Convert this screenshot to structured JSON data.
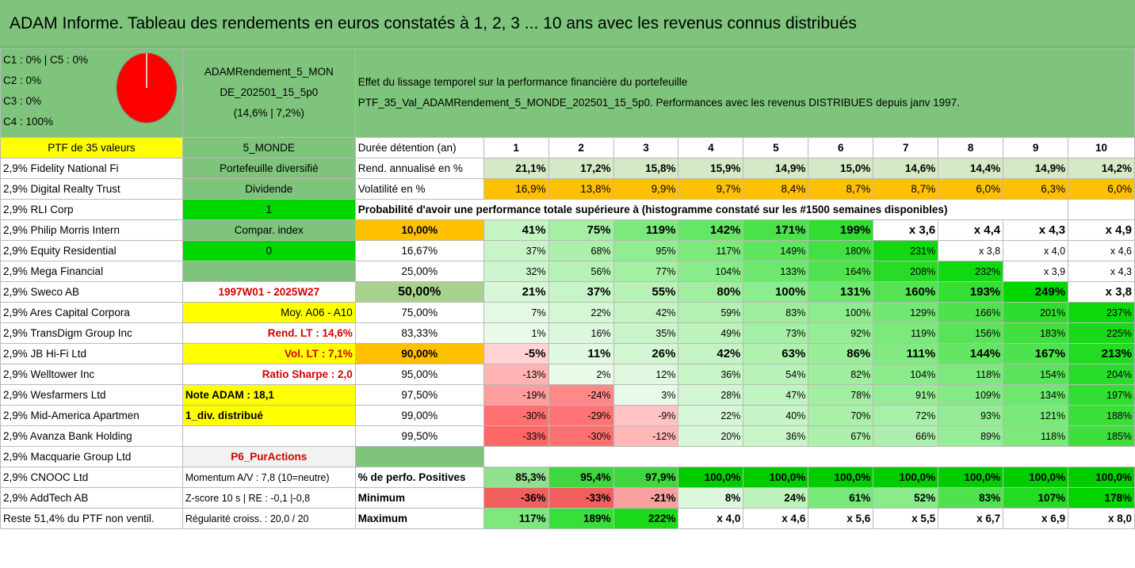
{
  "title": "ADAM Informe. Tableau des rendements en euros constatés à 1, 2, 3 ... 10 ans avec les revenus connus distribués",
  "pie": {
    "lines": [
      "C1 : 0% | C5 : 0%",
      "C2 : 0%",
      "C3 : 0%",
      "C4 : 100%"
    ],
    "color": "#ff0000"
  },
  "portfolio": {
    "name_l1": "ADAMRendement_5_MON",
    "name_l2": "DE_202501_15_5p0",
    "name_l3": "(14,6% | 7,2%)"
  },
  "header_text": {
    "l1": "Effet du lissage temporel sur la performance financière du portefeuille",
    "l2": "PTF_35_Val_ADAMRendement_5_MONDE_202501_15_5p0. Performances avec les revenus DISTRIBUES depuis janv 1997."
  },
  "ptf_label": "PTF de 35 valeurs",
  "mode": "5_MONDE",
  "holdings": [
    "2,9% Fidelity National Fi",
    "2,9% Digital Realty Trust",
    "2,9% RLI Corp",
    "2,9% Philip Morris Intern",
    "2,9% Equity Residential",
    "2,9% Mega Financial",
    "2,9% Sweco AB",
    "2,9% Ares Capital Corpora",
    "2,9% TransDigm Group Inc",
    "2,9% JB Hi-Fi Ltd",
    "2,9% Welltower Inc",
    "2,9% Wesfarmers Ltd",
    "2,9% Mid-America Apartmen",
    "2,9% Avanza Bank Holding",
    "2,9% Macquarie Group Ltd",
    "2,9% CNOOC Ltd",
    "2,9% AddTech AB",
    "Reste 51,4% du PTF non ventil."
  ],
  "col2": [
    "Portefeuille diversifié",
    "Dividende",
    "1",
    "Compar. index",
    "0",
    "",
    "1997W01 - 2025W27",
    "Moy. A06 - A10",
    "Rend. LT : 14,6%",
    "Vol. LT : 7,1%",
    "Ratio Sharpe : 2,0",
    "Note ADAM : 18,1",
    "1_div. distribué",
    "",
    "P6_PurActions",
    "Momentum A/V : 7,8 (10=neutre)",
    "Z-score 10 s | RE : -0,1 |-0,8",
    "Régularité croiss. : 20,0 / 20"
  ],
  "duree_label": "Durée détention (an)",
  "years": [
    "1",
    "2",
    "3",
    "4",
    "5",
    "6",
    "7",
    "8",
    "9",
    "10"
  ],
  "rend": {
    "label": "Rend. annualisé en %",
    "values": [
      "21,1%",
      "17,2%",
      "15,8%",
      "15,9%",
      "14,9%",
      "15,0%",
      "14,6%",
      "14,4%",
      "14,9%",
      "14,2%"
    ]
  },
  "vol": {
    "label": "Volatilité en %",
    "values": [
      "16,9%",
      "13,8%",
      "9,9%",
      "9,7%",
      "8,4%",
      "8,7%",
      "8,7%",
      "6,0%",
      "6,3%",
      "6,0%"
    ]
  },
  "proba_text": "Probabilité d'avoir une performance totale supérieure à (histogramme constaté sur les #1500 semaines disponibles)",
  "proba_rows": [
    {
      "pct": "10,00%",
      "values": [
        "41%",
        "75%",
        "119%",
        "142%",
        "171%",
        "199%",
        "x 3,6",
        "x 4,4",
        "x 4,3",
        "x 4,9"
      ]
    },
    {
      "pct": "16,67%",
      "values": [
        "37%",
        "68%",
        "95%",
        "117%",
        "149%",
        "180%",
        "231%",
        "x 3,8",
        "x 4,0",
        "x 4,6"
      ]
    },
    {
      "pct": "25,00%",
      "values": [
        "32%",
        "56%",
        "77%",
        "104%",
        "133%",
        "164%",
        "208%",
        "232%",
        "x 3,9",
        "x 4,3"
      ]
    },
    {
      "pct": "50,00%",
      "values": [
        "21%",
        "37%",
        "55%",
        "80%",
        "100%",
        "131%",
        "160%",
        "193%",
        "249%",
        "x 3,8"
      ]
    },
    {
      "pct": "75,00%",
      "values": [
        "7%",
        "22%",
        "42%",
        "59%",
        "83%",
        "100%",
        "129%",
        "166%",
        "201%",
        "237%"
      ]
    },
    {
      "pct": "83,33%",
      "values": [
        "1%",
        "16%",
        "35%",
        "49%",
        "73%",
        "92%",
        "119%",
        "156%",
        "183%",
        "225%"
      ]
    },
    {
      "pct": "90,00%",
      "values": [
        "-5%",
        "11%",
        "26%",
        "42%",
        "63%",
        "86%",
        "111%",
        "144%",
        "167%",
        "213%"
      ]
    },
    {
      "pct": "95,00%",
      "values": [
        "-13%",
        "2%",
        "12%",
        "36%",
        "54%",
        "82%",
        "104%",
        "118%",
        "154%",
        "204%"
      ]
    },
    {
      "pct": "97,50%",
      "values": [
        "-19%",
        "-24%",
        "3%",
        "28%",
        "47%",
        "78%",
        "91%",
        "109%",
        "134%",
        "197%"
      ]
    },
    {
      "pct": "99,00%",
      "values": [
        "-30%",
        "-29%",
        "-9%",
        "22%",
        "40%",
        "70%",
        "72%",
        "93%",
        "121%",
        "188%"
      ]
    },
    {
      "pct": "99,50%",
      "values": [
        "-33%",
        "-30%",
        "-12%",
        "20%",
        "36%",
        "67%",
        "66%",
        "89%",
        "118%",
        "185%"
      ]
    }
  ],
  "positives": {
    "label": "% de perfo. Positives",
    "values": [
      "85,3%",
      "95,4%",
      "97,9%",
      "100,0%",
      "100,0%",
      "100,0%",
      "100,0%",
      "100,0%",
      "100,0%",
      "100,0%"
    ]
  },
  "minimum": {
    "label": "Minimum",
    "values": [
      "-36%",
      "-33%",
      "-21%",
      "8%",
      "24%",
      "61%",
      "52%",
      "83%",
      "107%",
      "178%"
    ]
  },
  "maximum": {
    "label": "Maximum",
    "values": [
      "117%",
      "189%",
      "222%",
      "x 4,0",
      "x 4,6",
      "x 5,6",
      "x 5,5",
      "x 6,7",
      "x 6,9",
      "x 8,0"
    ]
  }
}
